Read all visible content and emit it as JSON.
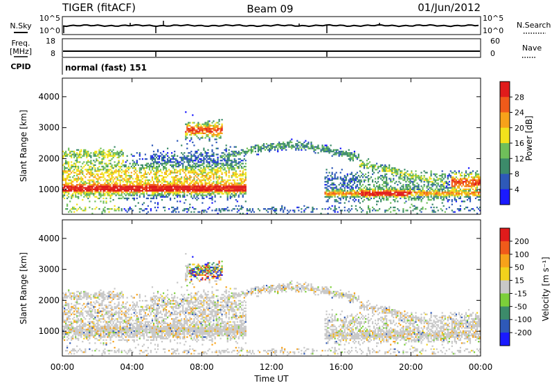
{
  "header": {
    "station": "TIGER (fitACF)",
    "beam": "Beam 09",
    "date": "01/Jun/2012"
  },
  "strip_labels": {
    "nsky": "N.Sky",
    "nsearch": "N.Search",
    "freq": "Freq.",
    "mhz": "[MHz]",
    "nave": "Nave",
    "cpid": "CPID",
    "cpid_value": "normal (fast) 151",
    "nsky_ticks": [
      "10^5",
      "10^0"
    ],
    "nsearch_ticks": [
      "10^5",
      "10^0"
    ],
    "freq_ticks": [
      "18",
      "8"
    ],
    "nave_ticks": [
      "60",
      "0"
    ]
  },
  "colors": {
    "power_scale": [
      "#1a1aff",
      "#2e59b8",
      "#3c8b6a",
      "#6fbf5a",
      "#f2e21c",
      "#f7a21a",
      "#f05a1a",
      "#e01b1b"
    ],
    "velocity_scale": [
      "#1a1aff",
      "#2e59b8",
      "#3c8b6a",
      "#7ccf3a",
      "#c8c8c8",
      "#f2d21c",
      "#f7a21a",
      "#f05a1a",
      "#e01b1b"
    ]
  },
  "chart_data": [
    {
      "type": "heatmap",
      "panel": "power",
      "xlabel": "",
      "ylabel": "Slant Range [km]",
      "xlim": [
        "00:00",
        "24:00"
      ],
      "ylim": [
        200,
        4600
      ],
      "y_ticks": [
        1000,
        2000,
        3000,
        4000
      ],
      "colorbar": {
        "label": "Power [dB]",
        "ticks": [
          4,
          8,
          12,
          16,
          20,
          24,
          28
        ],
        "range": [
          0,
          32
        ]
      },
      "grid": false
    },
    {
      "type": "heatmap",
      "panel": "velocity",
      "xlabel": "Time UT",
      "ylabel": "Slant Range [km]",
      "xlim": [
        "00:00",
        "24:00"
      ],
      "x_ticks": [
        "00:00",
        "04:00",
        "08:00",
        "12:00",
        "16:00",
        "20:00",
        "00:00"
      ],
      "ylim": [
        200,
        4600
      ],
      "y_ticks": [
        1000,
        2000,
        3000,
        4000
      ],
      "colorbar": {
        "label": "Velocity [m s⁻¹]",
        "ticks": [
          200,
          100,
          50,
          15,
          -15,
          -50,
          -100,
          -200
        ]
      },
      "grid": false
    }
  ]
}
